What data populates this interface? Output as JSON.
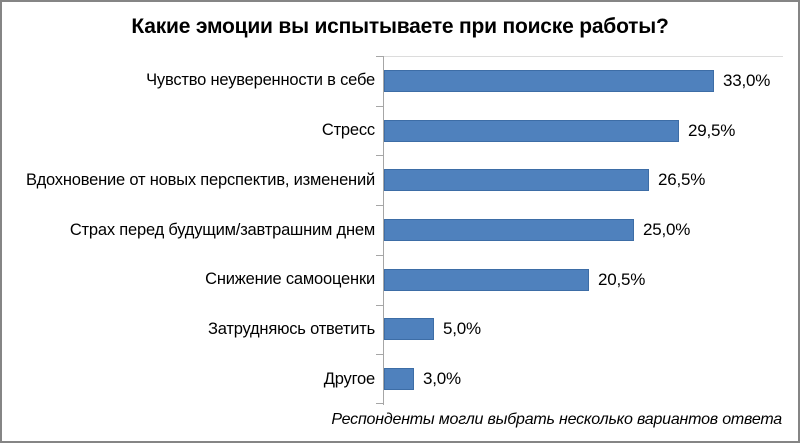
{
  "title": "Какие эмоции вы испытываете при поиске работы?",
  "footnote": "Респонденты могли выбрать несколько вариантов ответа",
  "chart_data": {
    "type": "bar",
    "orientation": "horizontal",
    "title": "Какие эмоции вы испытываете при поиске работы?",
    "categories": [
      "Чувство неуверенности в себе",
      "Стресс",
      "Вдохновение от новых перспектив, изменений",
      "Страх перед будущим/завтрашним днем",
      "Снижение самооценки",
      "Затрудняюсь ответить",
      "Другое"
    ],
    "values": [
      33.0,
      29.5,
      26.5,
      25.0,
      20.5,
      5.0,
      3.0
    ],
    "value_labels": [
      "33,0%",
      "29,5%",
      "26,5%",
      "25,0%",
      "20,5%",
      "5,0%",
      "3,0%"
    ],
    "xlabel": "",
    "ylabel": "",
    "xlim": [
      0,
      40
    ],
    "grid": false,
    "legend": false,
    "data_labels": "outside-end",
    "bar_color": "#4F81BD",
    "bar_border_color": "#3D6DA6",
    "axis_color": "#A6A6A6",
    "note": "Респонденты могли выбрать несколько вариантов ответа"
  }
}
